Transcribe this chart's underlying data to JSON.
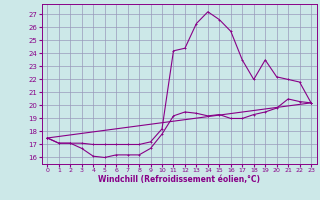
{
  "xlabel": "Windchill (Refroidissement éolien,°C)",
  "xlim": [
    -0.5,
    23.5
  ],
  "ylim": [
    15.5,
    27.8
  ],
  "yticks": [
    16,
    17,
    18,
    19,
    20,
    21,
    22,
    23,
    24,
    25,
    26,
    27
  ],
  "xticks": [
    0,
    1,
    2,
    3,
    4,
    5,
    6,
    7,
    8,
    9,
    10,
    11,
    12,
    13,
    14,
    15,
    16,
    17,
    18,
    19,
    20,
    21,
    22,
    23
  ],
  "bg_color": "#cce8e8",
  "grid_color": "#9999bb",
  "line_color": "#880088",
  "line1_x": [
    0,
    1,
    2,
    3,
    4,
    5,
    6,
    7,
    8,
    9,
    10,
    11,
    12,
    13,
    14,
    15,
    16,
    17,
    18,
    19,
    20,
    21,
    22,
    23
  ],
  "line1_y": [
    17.5,
    17.1,
    17.1,
    16.7,
    16.1,
    16.0,
    16.2,
    16.2,
    16.2,
    16.7,
    17.8,
    19.2,
    19.5,
    19.4,
    19.2,
    19.3,
    19.0,
    19.0,
    19.3,
    19.5,
    19.8,
    20.5,
    20.3,
    20.2
  ],
  "line2_x": [
    0,
    1,
    2,
    3,
    4,
    5,
    6,
    7,
    8,
    9,
    10,
    11,
    12,
    13,
    14,
    15,
    16,
    17,
    18,
    19,
    20,
    21,
    22,
    23
  ],
  "line2_y": [
    17.5,
    17.1,
    17.1,
    17.1,
    17.0,
    17.0,
    17.0,
    17.0,
    17.0,
    17.2,
    18.2,
    24.2,
    24.4,
    26.3,
    27.2,
    26.6,
    25.7,
    23.5,
    22.0,
    23.5,
    22.2,
    22.0,
    21.8,
    20.2
  ],
  "line3_x": [
    0,
    23
  ],
  "line3_y": [
    17.5,
    20.2
  ]
}
